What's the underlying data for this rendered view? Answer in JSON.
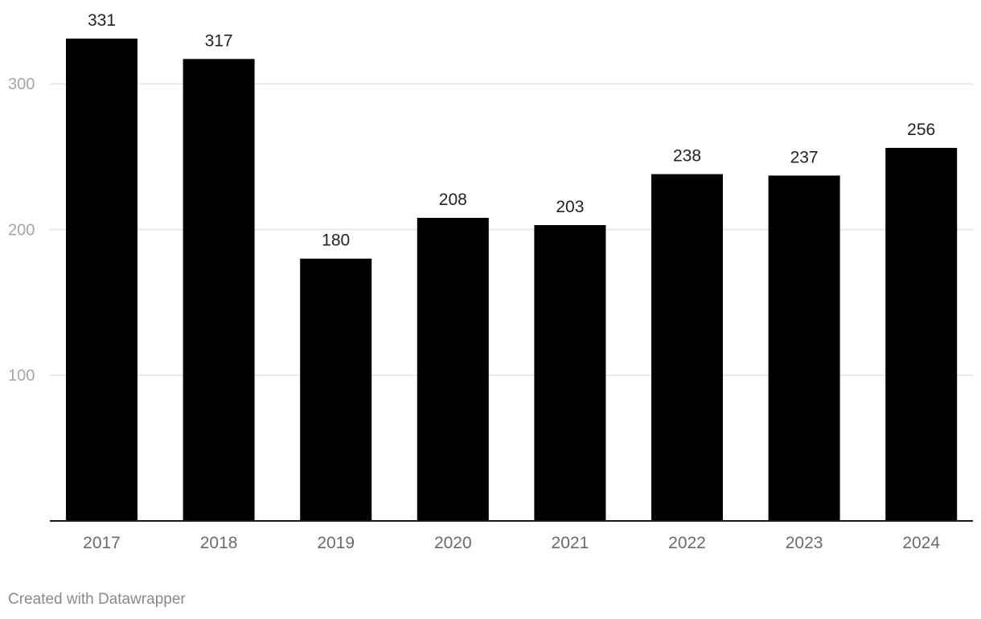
{
  "chart_data": {
    "type": "bar",
    "categories": [
      "2017",
      "2018",
      "2019",
      "2020",
      "2021",
      "2022",
      "2023",
      "2024"
    ],
    "values": [
      331,
      317,
      180,
      208,
      203,
      238,
      237,
      256
    ],
    "yticks": [
      100,
      200,
      300
    ],
    "ylim": [
      0,
      331
    ],
    "grid": true,
    "bar_color": "#000000",
    "grid_color": "#e3e3e3"
  },
  "footer": {
    "credit": "Created with Datawrapper"
  }
}
